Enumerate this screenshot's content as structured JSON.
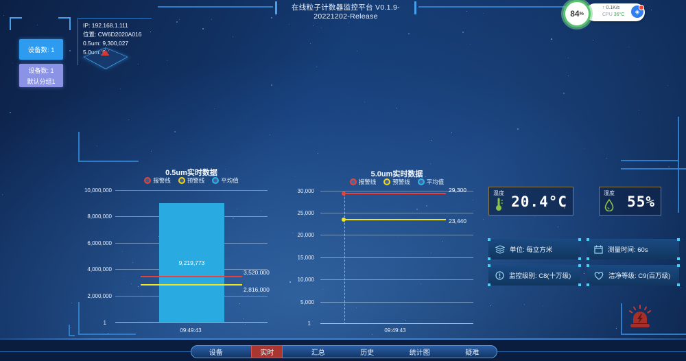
{
  "header": {
    "title": "在线粒子计数器监控平台 V0.1.9-20221202-Release"
  },
  "system_widget": {
    "battery_value": "84",
    "battery_unit": "%",
    "net_arrow": "↑",
    "net_speed": "0.1K/s",
    "cpu_label": "CPU",
    "cpu_temp": "36°C"
  },
  "sidebar": {
    "device_count": "设备数: 1",
    "group_line1": "设备数: 1",
    "group_line2": "默认分组1"
  },
  "device_info": {
    "ip": "IP: 192.168.1.111",
    "location": "位置: CW6D2020A016",
    "um05": "0.5um: 9,300,027",
    "um50": "5.0um: 0"
  },
  "chart_data": [
    {
      "type": "bar",
      "title": "0.5um实时数据",
      "legend": [
        {
          "label": "报警线",
          "color": "#e8413c"
        },
        {
          "label": "预警线",
          "color": "#f3d514"
        },
        {
          "label": "平均值",
          "color": "#2fb3f0"
        }
      ],
      "categories": [
        "09:49:43"
      ],
      "series": [
        {
          "name": "0.5um",
          "values": [
            9219773
          ]
        }
      ],
      "value_labels": [
        "9,219,773"
      ],
      "alarm_line": {
        "value": 3520000,
        "label": "3,520,000",
        "color": "#e8413c"
      },
      "warning_line": {
        "value": 2816000,
        "label": "2,816,000",
        "color": "#f3e51e"
      },
      "ylim": [
        1,
        10000000
      ],
      "yticks": [
        "10,000,000",
        "8,000,000",
        "6,000,000",
        "4,000,000",
        "2,000,000",
        "1"
      ],
      "xlabel_start": "1",
      "bar_color": "#29abe2",
      "grid": true,
      "legend_position": "top"
    },
    {
      "type": "line",
      "title": "5.0um实时数据",
      "legend": [
        {
          "label": "报警线",
          "color": "#e8413c"
        },
        {
          "label": "预警线",
          "color": "#f3d514"
        },
        {
          "label": "平均值",
          "color": "#2fb3f0"
        }
      ],
      "categories": [
        "09:49:43"
      ],
      "alarm_line": {
        "value": 29300,
        "label": "29,300",
        "color": "#e8413c"
      },
      "warning_line": {
        "value": 23440,
        "label": "23,440",
        "color": "#f3e51e"
      },
      "ylim": [
        1,
        30000
      ],
      "yticks": [
        "30,000",
        "25,000",
        "20,000",
        "15,000",
        "10,000",
        "5,000",
        "1"
      ],
      "xlabel_start": "1",
      "grid": true,
      "legend_position": "top"
    }
  ],
  "environment": {
    "temperature": {
      "label": "温度",
      "value": "20.4°C"
    },
    "humidity": {
      "label": "湿度",
      "value": "55%"
    }
  },
  "info_cards": [
    {
      "icon": "layers-icon",
      "label": "单位: 每立方米"
    },
    {
      "icon": "calendar-icon",
      "label": "测量时间: 60s"
    },
    {
      "icon": "monitor-level-icon",
      "label": "监控级别: C8(十万级)"
    },
    {
      "icon": "clean-level-icon",
      "label": "洁净等级: C9(百万级)"
    }
  ],
  "nav": {
    "items": [
      "设备",
      "实时",
      "汇总",
      "历史",
      "统计图",
      "疑难"
    ],
    "active": "实时"
  }
}
